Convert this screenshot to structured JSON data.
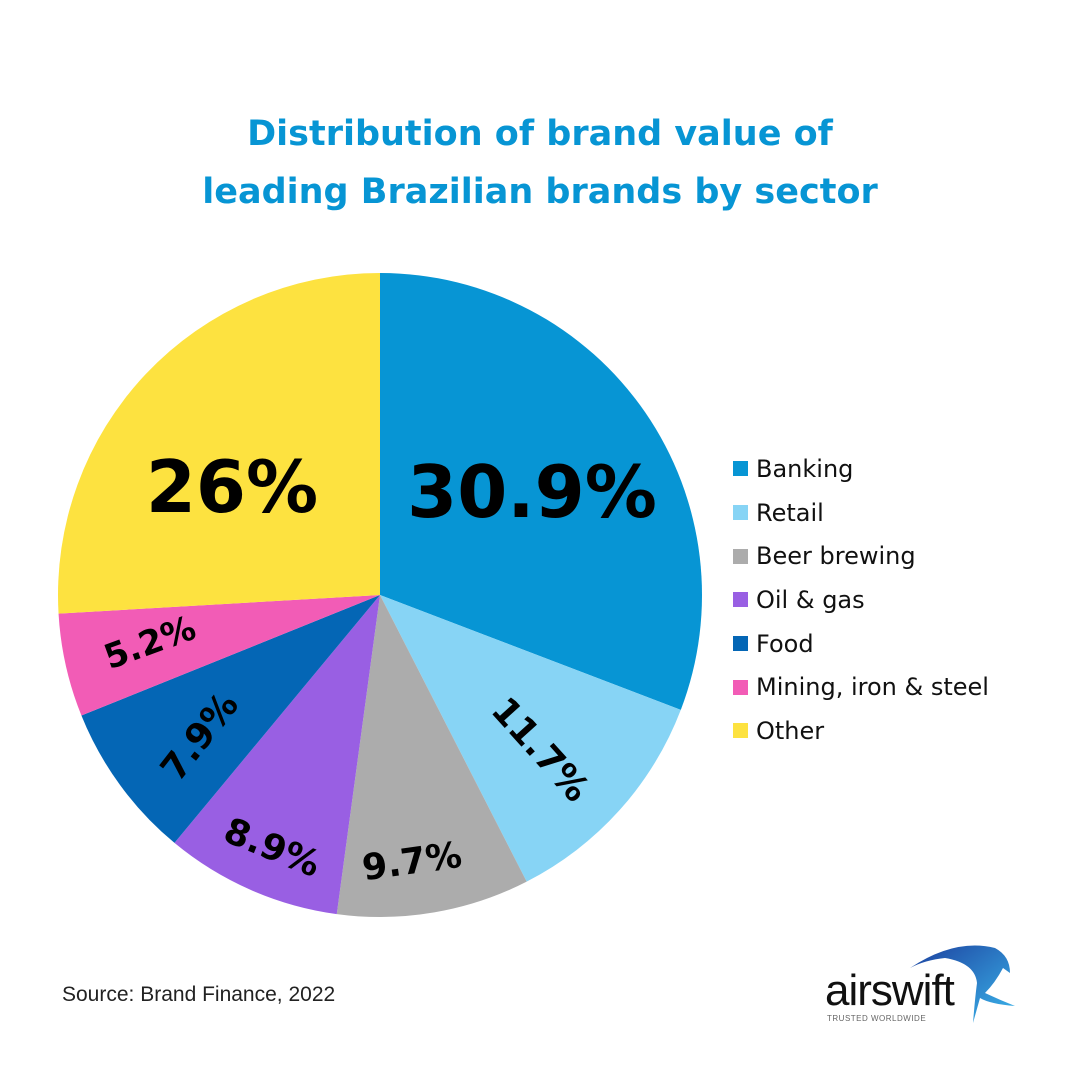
{
  "chart_data": {
    "type": "pie",
    "title_lines": [
      "Distribution of brand value of",
      "leading Brazilian brands by sector"
    ],
    "start": "12 o'clock",
    "direction": "clockwise",
    "legend_placement": "right",
    "slices": [
      {
        "name": "Banking",
        "value": 30.9,
        "label": "30.9%",
        "color": "#0795d4"
      },
      {
        "name": "Retail",
        "value": 11.7,
        "label": "11.7%",
        "color": "#87d4f5"
      },
      {
        "name": "Beer brewing",
        "value": 9.7,
        "label": "9.7%",
        "color": "#acacac"
      },
      {
        "name": "Oil & gas",
        "value": 8.9,
        "label": "8.9%",
        "color": "#995fe3"
      },
      {
        "name": "Food",
        "value": 7.9,
        "label": "7.9%",
        "color": "#0466b5"
      },
      {
        "name": "Mining, iron & steel",
        "value": 5.2,
        "label": "5.2%",
        "color": "#f25cb6"
      },
      {
        "name": "Other",
        "value": 26,
        "label": "26%",
        "color": "#fde240"
      }
    ]
  },
  "source": "Source: Brand Finance, 2022",
  "logo": {
    "name": "airswift",
    "tagline": "TRUSTED WORLDWIDE"
  }
}
